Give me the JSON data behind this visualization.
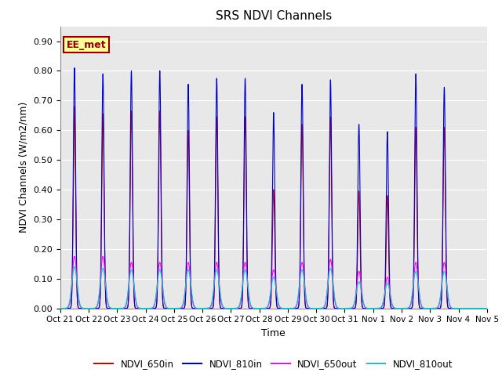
{
  "title": "SRS NDVI Channels",
  "xlabel": "Time",
  "ylabel": "NDVI Channels (W/m2/nm)",
  "ylim": [
    0.0,
    0.95
  ],
  "yticks": [
    0.0,
    0.1,
    0.2,
    0.3,
    0.4,
    0.5,
    0.6,
    0.7,
    0.8,
    0.9
  ],
  "bg_color": "#e8e8e8",
  "annotation_text": "EE_met",
  "annotation_color": "#8B0000",
  "annotation_bg": "#ffff99",
  "annotation_border": "#8B0000",
  "line_colors": {
    "NDVI_650in": "#cc0000",
    "NDVI_810in": "#0000cc",
    "NDVI_650out": "#ff00ff",
    "NDVI_810out": "#00cccc"
  },
  "xtick_labels": [
    "Oct 21",
    "Oct 22",
    "Oct 23",
    "Oct 24",
    "Oct 25",
    "Oct 26",
    "Oct 27",
    "Oct 28",
    "Oct 29",
    "Oct 30",
    "Oct 31",
    "Nov 1",
    "Nov 2",
    "Nov 3",
    "Nov 4",
    "Nov 5"
  ],
  "day_peaks_810in": [
    0.81,
    0.79,
    0.8,
    0.8,
    0.755,
    0.775,
    0.775,
    0.66,
    0.755,
    0.77,
    0.62,
    0.595,
    0.79,
    0.745
  ],
  "day_peaks_650in": [
    0.68,
    0.655,
    0.665,
    0.665,
    0.6,
    0.645,
    0.645,
    0.4,
    0.62,
    0.645,
    0.395,
    0.38,
    0.61,
    0.61
  ],
  "day_peaks_650out": [
    0.175,
    0.175,
    0.155,
    0.155,
    0.155,
    0.155,
    0.155,
    0.13,
    0.155,
    0.165,
    0.125,
    0.105,
    0.155,
    0.155
  ],
  "day_peaks_810out": [
    0.14,
    0.135,
    0.13,
    0.13,
    0.13,
    0.13,
    0.13,
    0.105,
    0.13,
    0.135,
    0.09,
    0.085,
    0.125,
    0.125
  ],
  "figsize": [
    6.4,
    4.8
  ],
  "dpi": 100
}
